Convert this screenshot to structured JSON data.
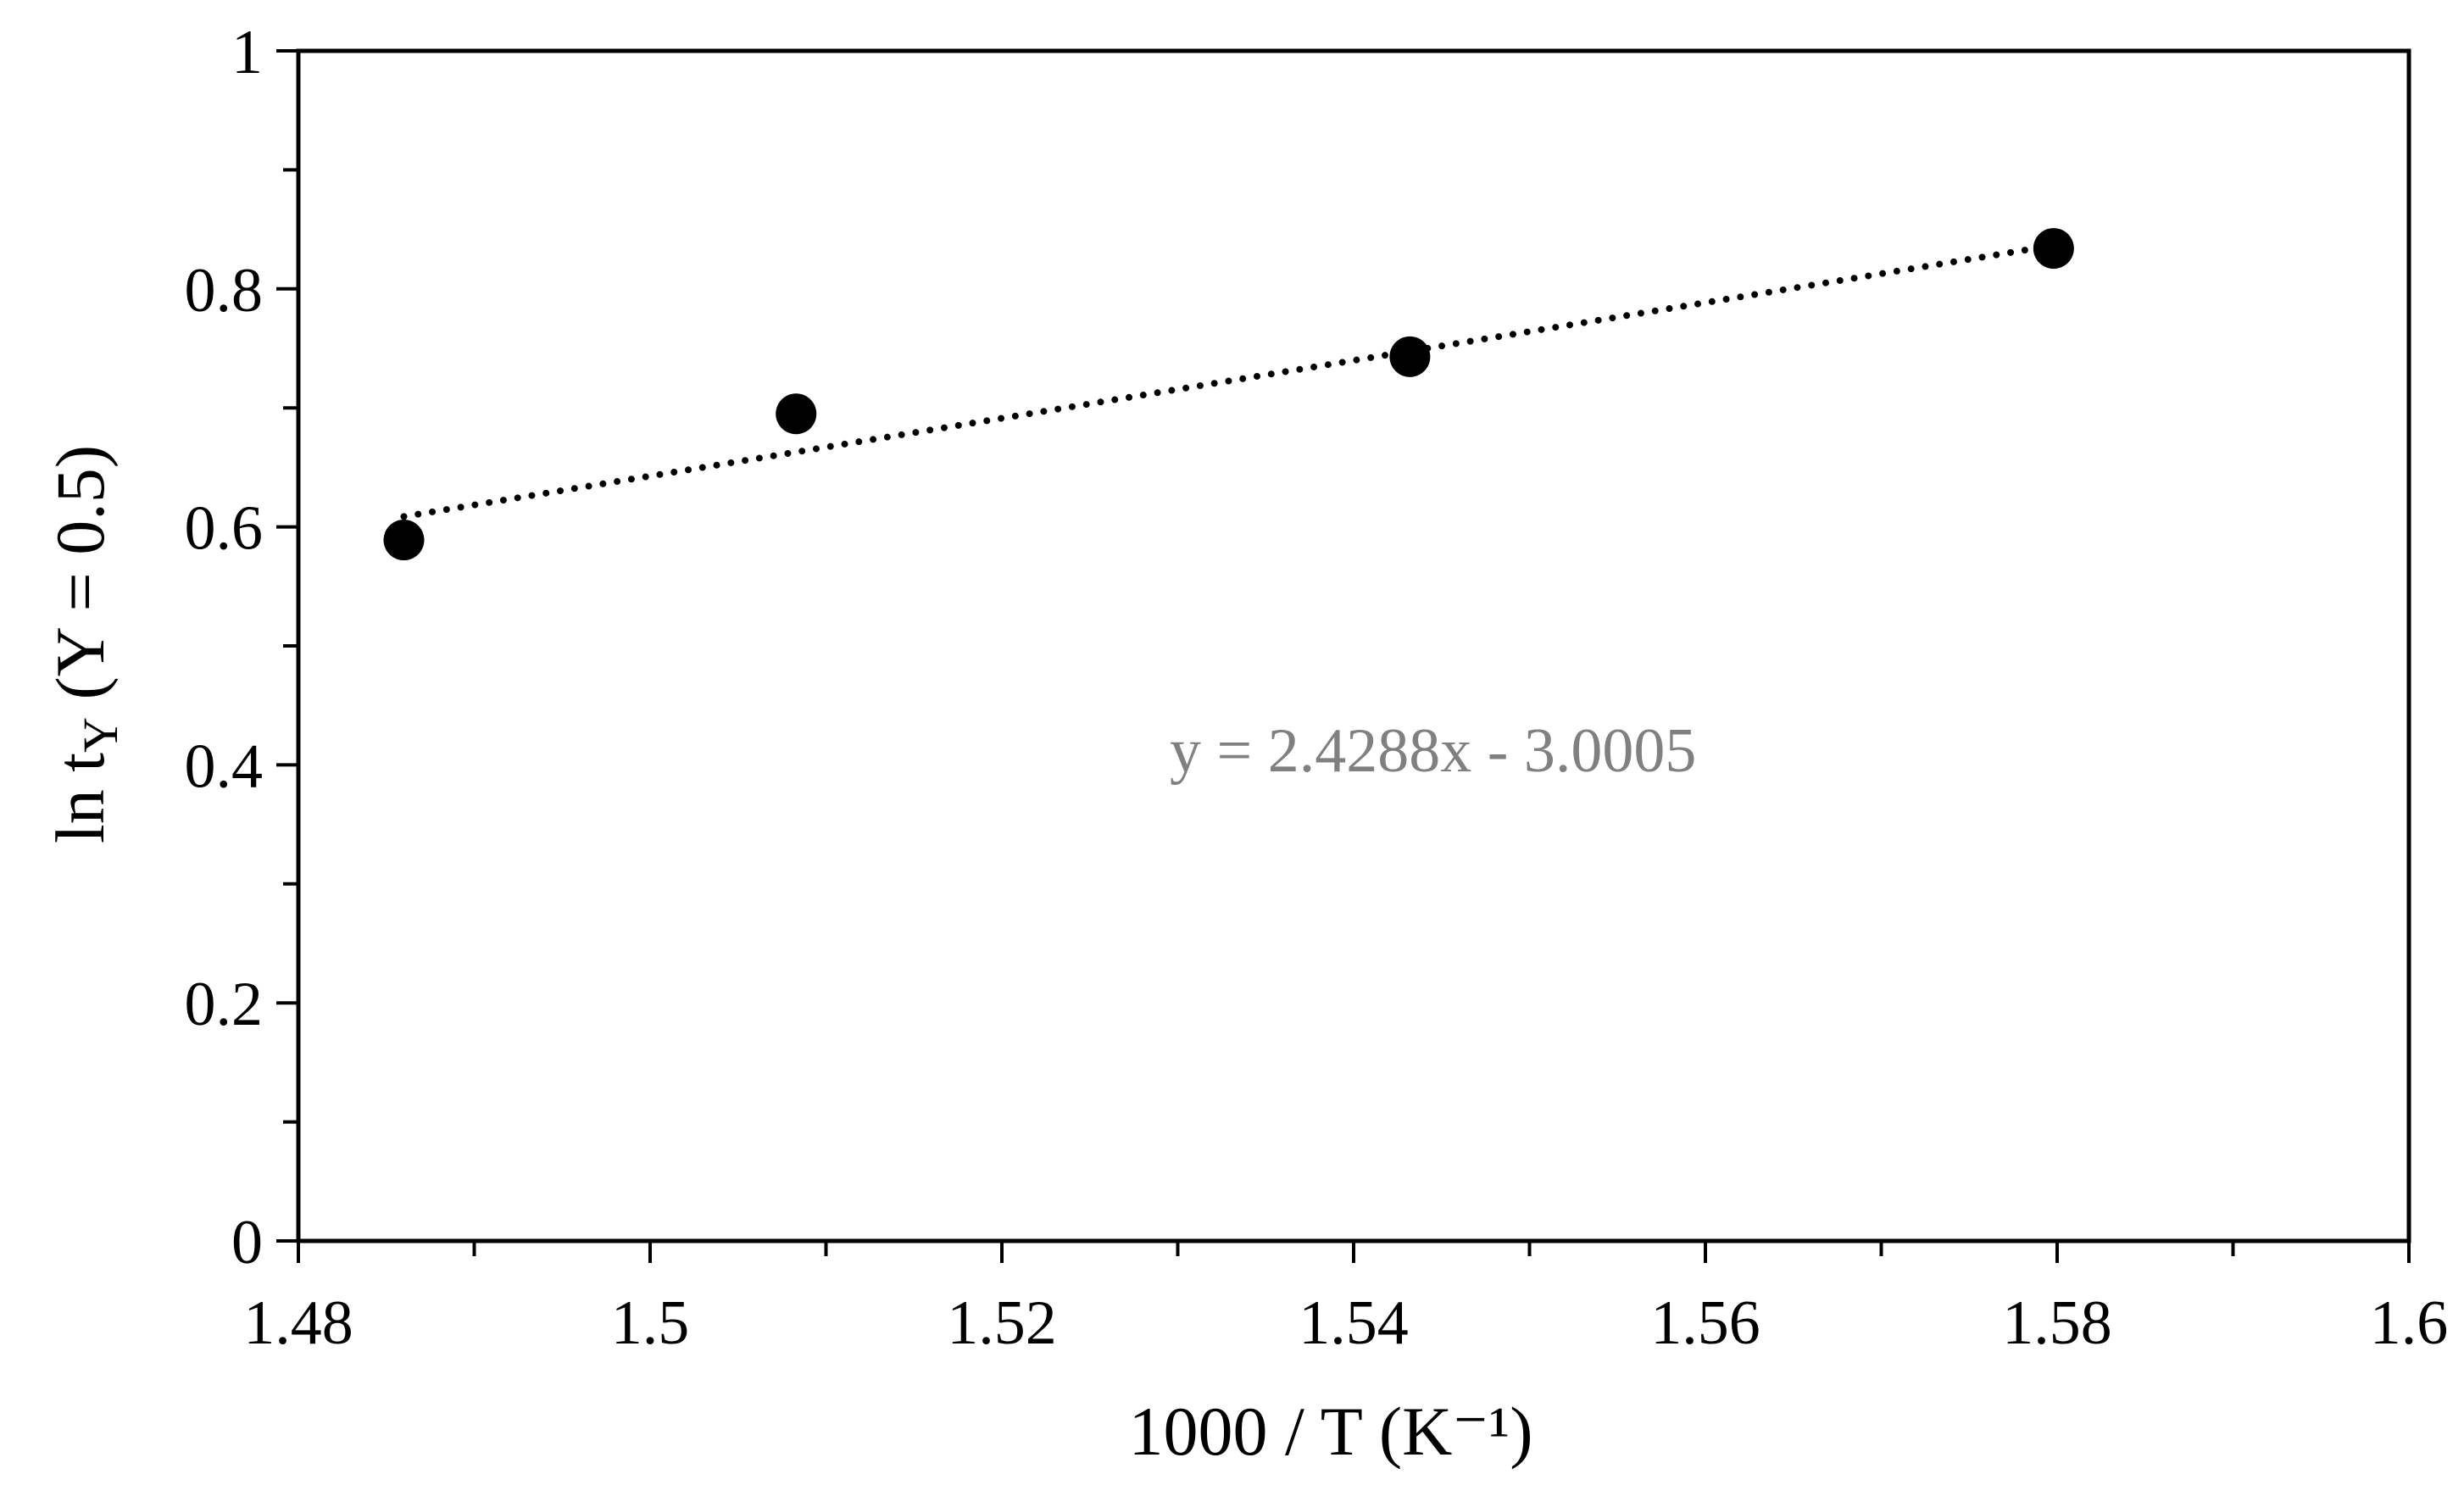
{
  "chart_data": {
    "type": "scatter",
    "xlabel": "1000 / T (K⁻¹)",
    "ylabel": "ln t",
    "ylabel_subscript": "Y",
    "ylabel_suffix": " (Y = 0.5)",
    "xlim": [
      1.48,
      1.6
    ],
    "ylim": [
      0,
      1
    ],
    "x_ticks": [
      1.48,
      1.5,
      1.52,
      1.54,
      1.56,
      1.58,
      1.6
    ],
    "x_tick_labels": [
      "1.48",
      "1.5",
      "1.52",
      "1.54",
      "1.56",
      "1.58",
      "1.6"
    ],
    "y_ticks": [
      0,
      0.2,
      0.4,
      0.6,
      0.8,
      1
    ],
    "y_tick_labels": [
      "0",
      "0.2",
      "0.4",
      "0.6",
      "0.8",
      "1"
    ],
    "x_minor_step": 0.01,
    "y_minor_step": 0.1,
    "grid": false,
    "series": [
      {
        "x": [
          1.486,
          1.5083,
          1.5432,
          1.5798
        ],
        "y": [
          0.589,
          0.695,
          0.743,
          0.834
        ],
        "marker": "circle",
        "color": "#000000"
      }
    ],
    "trendline": {
      "type": "linear",
      "slope": 2.4288,
      "intercept": -3.0005,
      "x_range": [
        1.486,
        1.5798
      ],
      "style": "dotted",
      "color": "#000000"
    },
    "annotations": [
      {
        "text": "y = 2.4288x - 3.0005",
        "color": "#808080"
      }
    ]
  }
}
